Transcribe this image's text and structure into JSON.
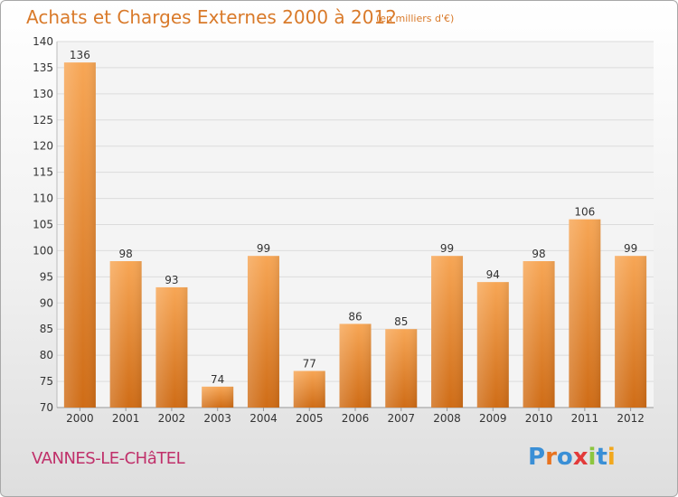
{
  "chart_data": {
    "type": "bar",
    "title": "Achats et Charges Externes 2000 à 2012",
    "subtitle": "(en milliers d'€)",
    "xlabel": "",
    "ylabel": "",
    "categories": [
      "2000",
      "2001",
      "2002",
      "2003",
      "2004",
      "2005",
      "2006",
      "2007",
      "2008",
      "2009",
      "2010",
      "2011",
      "2012"
    ],
    "values": [
      136,
      98,
      93,
      74,
      99,
      77,
      86,
      85,
      99,
      94,
      98,
      106,
      99
    ],
    "ylim": [
      70,
      140
    ],
    "yticks": [
      70,
      75,
      80,
      85,
      90,
      95,
      100,
      105,
      110,
      115,
      120,
      125,
      130,
      135,
      140
    ],
    "grid": true,
    "legend": "none",
    "bar_color": "#f28c28",
    "title_color": "#d97a2a"
  },
  "footer": {
    "commune": "VANNES-LE-CHâTEL",
    "commune_color": "#c0306a",
    "brand_letters": [
      {
        "ch": "P",
        "color": "#3a8fd6"
      },
      {
        "ch": "r",
        "color": "#e8731f"
      },
      {
        "ch": "o",
        "color": "#3a8fd6"
      },
      {
        "ch": "x",
        "color": "#e23a3a"
      },
      {
        "ch": "i",
        "color": "#8cc63f"
      },
      {
        "ch": "t",
        "color": "#3a8fd6"
      },
      {
        "ch": "i",
        "color": "#f2a81d"
      }
    ]
  }
}
